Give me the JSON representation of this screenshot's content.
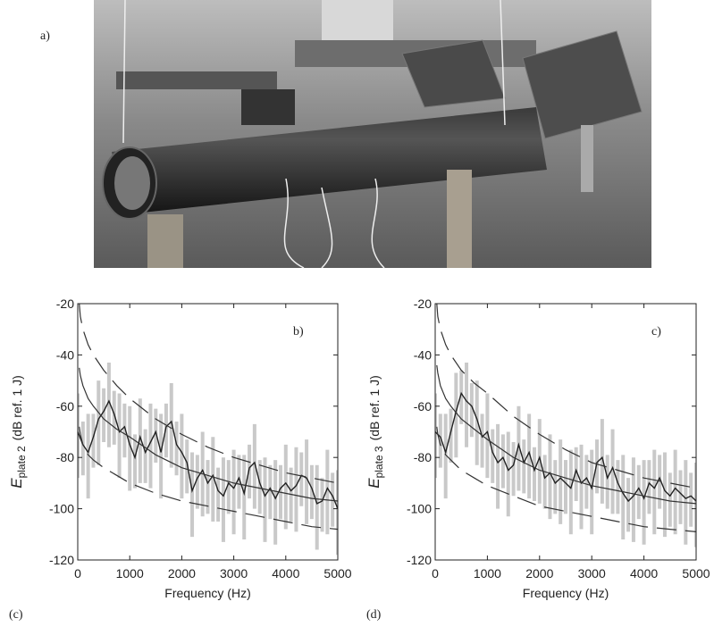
{
  "label_a": "a)",
  "chart_data": [
    {
      "type": "line",
      "panel_label": "b)",
      "caption": "(c)",
      "xlabel": "Frequency (Hz)",
      "ylabel": "E",
      "ylabel_sub": "plate 2",
      "ylabel_unit": "(dB ref. 1 J)",
      "xlim": [
        0,
        5000
      ],
      "ylim": [
        -120,
        -20
      ],
      "xticks": [
        0,
        1000,
        2000,
        3000,
        4000,
        5000
      ],
      "yticks": [
        -120,
        -100,
        -80,
        -60,
        -40,
        -20
      ],
      "band": {
        "color": "#c9c9c9",
        "x": [
          0,
          100,
          200,
          300,
          400,
          500,
          600,
          700,
          800,
          900,
          1000,
          1100,
          1200,
          1300,
          1400,
          1500,
          1600,
          1700,
          1800,
          1900,
          2000,
          2100,
          2200,
          2300,
          2400,
          2500,
          2600,
          2700,
          2800,
          2900,
          3000,
          3100,
          3200,
          3300,
          3400,
          3500,
          3600,
          3700,
          3800,
          3900,
          4000,
          4100,
          4200,
          4300,
          4400,
          4500,
          4600,
          4700,
          4800,
          4900,
          5000
        ],
        "upper": [
          -55,
          -66,
          -63,
          -63,
          -50,
          -53,
          -43,
          -54,
          -55,
          -59,
          -60,
          -71,
          -57,
          -69,
          -59,
          -61,
          -63,
          -59,
          -51,
          -66,
          -63,
          -73,
          -78,
          -79,
          -70,
          -81,
          -72,
          -84,
          -80,
          -81,
          -77,
          -79,
          -79,
          -75,
          -67,
          -81,
          -80,
          -83,
          -81,
          -83,
          -75,
          -84,
          -76,
          -78,
          -73,
          -83,
          -83,
          -88,
          -77,
          -86,
          -85
        ],
        "lower": [
          -88,
          -87,
          -96,
          -84,
          -83,
          -74,
          -76,
          -75,
          -88,
          -80,
          -93,
          -92,
          -90,
          -90,
          -92,
          -82,
          -96,
          -80,
          -84,
          -87,
          -96,
          -94,
          -111,
          -100,
          -103,
          -102,
          -105,
          -105,
          -113,
          -102,
          -110,
          -100,
          -112,
          -96,
          -100,
          -102,
          -113,
          -104,
          -114,
          -104,
          -108,
          -105,
          -109,
          -99,
          -106,
          -104,
          -116,
          -109,
          -110,
          -107,
          -118
        ]
      },
      "series": [
        {
          "color": "#222222",
          "width": 1.4,
          "dash": false,
          "x": [
            0,
            100,
            200,
            300,
            400,
            500,
            600,
            700,
            800,
            900,
            1000,
            1100,
            1200,
            1300,
            1400,
            1500,
            1600,
            1700,
            1800,
            1900,
            2000,
            2100,
            2200,
            2300,
            2400,
            2500,
            2600,
            2700,
            2800,
            2900,
            3000,
            3100,
            3200,
            3300,
            3400,
            3500,
            3600,
            3700,
            3800,
            3900,
            4000,
            4100,
            4200,
            4300,
            4400,
            4500,
            4600,
            4700,
            4800,
            4900,
            5000
          ],
          "values": [
            -70,
            -75,
            -78,
            -72,
            -65,
            -62,
            -58,
            -63,
            -70,
            -68,
            -75,
            -80,
            -72,
            -78,
            -74,
            -70,
            -78,
            -68,
            -66,
            -75,
            -78,
            -82,
            -93,
            -88,
            -85,
            -90,
            -87,
            -93,
            -95,
            -90,
            -92,
            -88,
            -94,
            -84,
            -82,
            -90,
            -95,
            -92,
            -96,
            -92,
            -90,
            -93,
            -91,
            -87,
            -88,
            -92,
            -98,
            -97,
            -92,
            -95,
            -100
          ]
        },
        {
          "color": "#333333",
          "width": 1.2,
          "dash": false,
          "x": [
            30,
            50,
            100,
            200,
            300,
            500,
            750,
            1000,
            1500,
            2000,
            2500,
            3000,
            3500,
            4000,
            4500,
            5000
          ],
          "values": [
            -45,
            -48,
            -52,
            -57,
            -60,
            -65,
            -69,
            -72,
            -79,
            -84,
            -87,
            -90,
            -92,
            -94,
            -96,
            -97
          ]
        },
        {
          "color": "#333333",
          "width": 1.2,
          "dash": true,
          "x": [
            30,
            50,
            100,
            200,
            300,
            500,
            750,
            1000,
            1500,
            2000,
            2500,
            3000,
            3500,
            4000,
            4500,
            5000
          ],
          "values": [
            -20,
            -25,
            -30,
            -36,
            -40,
            -46,
            -52,
            -57,
            -65,
            -71,
            -76,
            -80,
            -83,
            -86,
            -88,
            -90
          ]
        },
        {
          "color": "#333333",
          "width": 1.2,
          "dash": true,
          "x": [
            30,
            50,
            100,
            200,
            300,
            500,
            750,
            1000,
            1500,
            2000,
            2500,
            3000,
            3500,
            4000,
            4500,
            5000
          ],
          "values": [
            -68,
            -71,
            -75,
            -79,
            -81,
            -84,
            -87,
            -90,
            -94,
            -97,
            -99,
            -101,
            -103,
            -105,
            -107,
            -108
          ]
        }
      ]
    },
    {
      "type": "line",
      "panel_label": "c)",
      "caption": "(d)",
      "xlabel": "Frequency (Hz)",
      "ylabel": "E",
      "ylabel_sub": "plate 3",
      "ylabel_unit": "(dB ref. 1 J)",
      "xlim": [
        0,
        5000
      ],
      "ylim": [
        -120,
        -20
      ],
      "xticks": [
        0,
        1000,
        2000,
        3000,
        4000,
        5000
      ],
      "yticks": [
        -120,
        -100,
        -80,
        -60,
        -40,
        -20
      ],
      "band": {
        "color": "#c9c9c9",
        "x": [
          0,
          100,
          200,
          300,
          400,
          500,
          600,
          700,
          800,
          900,
          1000,
          1100,
          1200,
          1300,
          1400,
          1500,
          1600,
          1700,
          1800,
          1900,
          2000,
          2100,
          2200,
          2300,
          2400,
          2500,
          2600,
          2700,
          2800,
          2900,
          3000,
          3100,
          3200,
          3300,
          3400,
          3500,
          3600,
          3700,
          3800,
          3900,
          4000,
          4100,
          4200,
          4300,
          4400,
          4500,
          4600,
          4700,
          4800,
          4900,
          5000
        ],
        "upper": [
          -55,
          -63,
          -63,
          -61,
          -47,
          -46,
          -43,
          -51,
          -50,
          -63,
          -55,
          -69,
          -67,
          -71,
          -70,
          -74,
          -60,
          -73,
          -63,
          -76,
          -65,
          -79,
          -71,
          -81,
          -73,
          -81,
          -77,
          -76,
          -75,
          -79,
          -77,
          -73,
          -65,
          -79,
          -69,
          -81,
          -79,
          -88,
          -80,
          -83,
          -81,
          -81,
          -77,
          -79,
          -78,
          -86,
          -77,
          -85,
          -81,
          -86,
          -82
        ],
        "lower": [
          -88,
          -84,
          -96,
          -82,
          -80,
          -67,
          -76,
          -72,
          -83,
          -84,
          -88,
          -90,
          -100,
          -92,
          -103,
          -95,
          -93,
          -94,
          -96,
          -97,
          -98,
          -100,
          -104,
          -102,
          -106,
          -102,
          -110,
          -97,
          -108,
          -100,
          -110,
          -94,
          -98,
          -100,
          -102,
          -102,
          -112,
          -109,
          -113,
          -104,
          -114,
          -102,
          -110,
          -100,
          -111,
          -107,
          -110,
          -106,
          -114,
          -107,
          -115
        ]
      },
      "series": [
        {
          "color": "#222222",
          "width": 1.4,
          "dash": false,
          "x": [
            0,
            100,
            200,
            300,
            400,
            500,
            600,
            700,
            800,
            900,
            1000,
            1100,
            1200,
            1300,
            1400,
            1500,
            1600,
            1700,
            1800,
            1900,
            2000,
            2100,
            2200,
            2300,
            2400,
            2500,
            2600,
            2700,
            2800,
            2900,
            3000,
            3100,
            3200,
            3300,
            3400,
            3500,
            3600,
            3700,
            3800,
            3900,
            4000,
            4100,
            4200,
            4300,
            4400,
            4500,
            4600,
            4700,
            4800,
            4900,
            5000
          ],
          "values": [
            -70,
            -72,
            -78,
            -70,
            -62,
            -55,
            -58,
            -60,
            -65,
            -72,
            -70,
            -78,
            -82,
            -80,
            -85,
            -83,
            -75,
            -82,
            -78,
            -85,
            -80,
            -88,
            -86,
            -90,
            -88,
            -90,
            -92,
            -85,
            -90,
            -88,
            -92,
            -82,
            -80,
            -88,
            -84,
            -90,
            -94,
            -97,
            -95,
            -92,
            -96,
            -90,
            -92,
            -88,
            -93,
            -95,
            -92,
            -94,
            -96,
            -95,
            -97
          ]
        },
        {
          "color": "#333333",
          "width": 1.2,
          "dash": false,
          "x": [
            30,
            50,
            100,
            200,
            300,
            500,
            750,
            1000,
            1500,
            2000,
            2500,
            3000,
            3500,
            4000,
            4500,
            5000
          ],
          "values": [
            -44,
            -47,
            -52,
            -57,
            -60,
            -65,
            -69,
            -73,
            -80,
            -85,
            -88,
            -91,
            -93,
            -95,
            -97,
            -98
          ]
        },
        {
          "color": "#333333",
          "width": 1.2,
          "dash": true,
          "x": [
            30,
            50,
            100,
            200,
            300,
            500,
            750,
            1000,
            1500,
            2000,
            2500,
            3000,
            3500,
            4000,
            4500,
            5000
          ],
          "values": [
            -20,
            -25,
            -30,
            -36,
            -40,
            -46,
            -51,
            -55,
            -64,
            -71,
            -77,
            -82,
            -85,
            -88,
            -90,
            -92
          ]
        },
        {
          "color": "#333333",
          "width": 1.2,
          "dash": true,
          "x": [
            30,
            50,
            100,
            200,
            300,
            500,
            750,
            1000,
            1500,
            2000,
            2500,
            3000,
            3500,
            4000,
            4500,
            5000
          ],
          "values": [
            -68,
            -71,
            -75,
            -79,
            -81,
            -85,
            -88,
            -91,
            -95,
            -99,
            -101,
            -103,
            -105,
            -107,
            -108,
            -109
          ]
        }
      ]
    }
  ]
}
